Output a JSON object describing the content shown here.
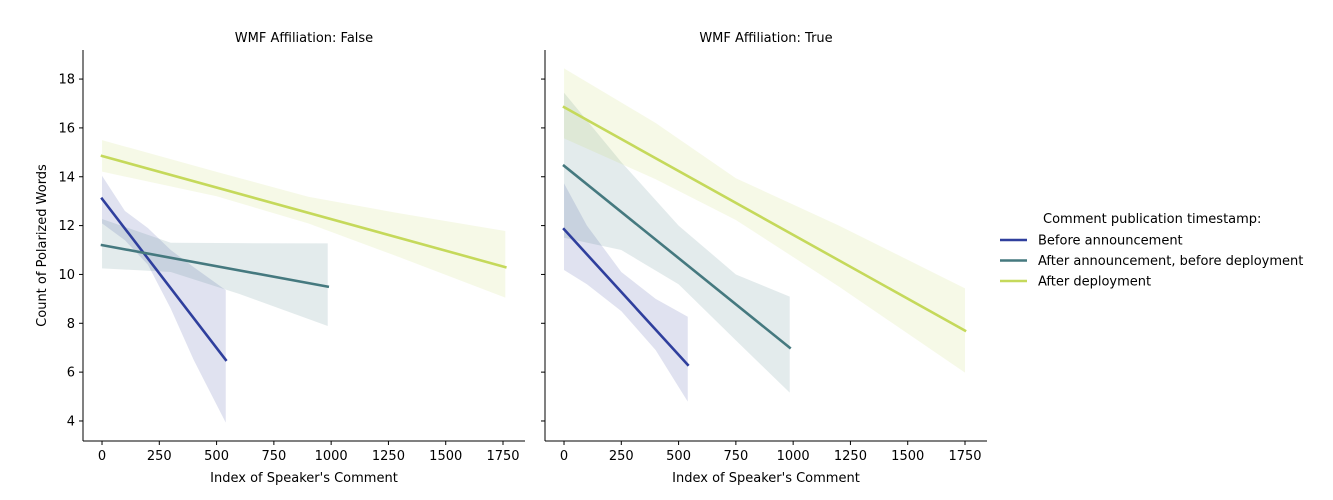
{
  "chart_data": [
    {
      "type": "line",
      "title": "WMF Affiliation: False",
      "xlabel": "Index of Speaker's Comment",
      "ylabel": "Count of Polarized Words",
      "xlim": [
        -83,
        1846
      ],
      "ylim": [
        3.18,
        19.19
      ],
      "xticks": [
        0,
        250,
        500,
        750,
        1000,
        1250,
        1500,
        1750
      ],
      "yticks": [
        4,
        6,
        8,
        10,
        12,
        14,
        16,
        18
      ],
      "series": [
        {
          "name": "Before announcement",
          "color": "#2f3f9d",
          "x": [
            0,
            540
          ],
          "y": [
            13.1,
            6.5
          ],
          "ci_x": [
            0,
            100,
            200,
            300,
            400,
            540
          ],
          "ci_upper": [
            14.04,
            12.6,
            11.9,
            11.0,
            10.3,
            9.36
          ],
          "ci_lower": [
            12.09,
            11.4,
            10.4,
            8.6,
            6.5,
            3.93
          ]
        },
        {
          "name": "After announcement, before deployment",
          "color": "#45797f",
          "x": [
            0,
            985
          ],
          "y": [
            11.2,
            9.5
          ],
          "ci_x": [
            0,
            300,
            600,
            985
          ],
          "ci_upper": [
            12.27,
            11.3,
            11.28,
            11.27
          ],
          "ci_lower": [
            10.25,
            10.1,
            9.2,
            7.89
          ]
        },
        {
          "name": "After deployment",
          "color": "#c5d95b",
          "x": [
            0,
            1760
          ],
          "y": [
            14.85,
            10.3
          ],
          "ci_x": [
            0,
            500,
            900,
            1300,
            1760
          ],
          "ci_upper": [
            15.5,
            14.2,
            13.18,
            12.5,
            11.78
          ],
          "ci_lower": [
            14.21,
            13.2,
            12.09,
            10.7,
            9.05
          ]
        }
      ]
    },
    {
      "type": "line",
      "title": "WMF Affiliation: True",
      "xlabel": "Index of Speaker's Comment",
      "ylabel": "",
      "xlim": [
        -83,
        1846
      ],
      "ylim": [
        3.18,
        19.19
      ],
      "xticks": [
        0,
        250,
        500,
        750,
        1000,
        1250,
        1500,
        1750
      ],
      "yticks": [
        4,
        6,
        8,
        10,
        12,
        14,
        16,
        18
      ],
      "series": [
        {
          "name": "Before announcement",
          "color": "#2f3f9d",
          "x": [
            0,
            540
          ],
          "y": [
            11.85,
            6.3
          ],
          "ci_x": [
            0,
            100,
            250,
            400,
            540
          ],
          "ci_upper": [
            13.73,
            12.0,
            10.1,
            9.0,
            8.27
          ],
          "ci_lower": [
            10.18,
            9.6,
            8.5,
            6.9,
            4.79
          ]
        },
        {
          "name": "After announcement, before deployment",
          "color": "#45797f",
          "x": [
            0,
            985
          ],
          "y": [
            14.45,
            7.0
          ],
          "ci_x": [
            0,
            250,
            500,
            750,
            985
          ],
          "ci_upper": [
            17.44,
            14.6,
            12.0,
            10.0,
            9.09
          ],
          "ci_lower": [
            11.5,
            11.0,
            9.6,
            7.3,
            5.16
          ]
        },
        {
          "name": "After deployment",
          "color": "#c5d95b",
          "x": [
            0,
            1750
          ],
          "y": [
            16.85,
            7.7
          ],
          "ci_x": [
            0,
            400,
            750,
            1200,
            1750
          ],
          "ci_upper": [
            18.44,
            16.2,
            13.94,
            12.0,
            9.43
          ],
          "ci_lower": [
            15.57,
            13.9,
            12.23,
            9.5,
            5.98
          ]
        }
      ]
    }
  ],
  "legend": {
    "title": "Comment publication timestamp:",
    "placement": "right",
    "entries": [
      "Before announcement",
      "After announcement, before deployment",
      "After deployment"
    ]
  }
}
